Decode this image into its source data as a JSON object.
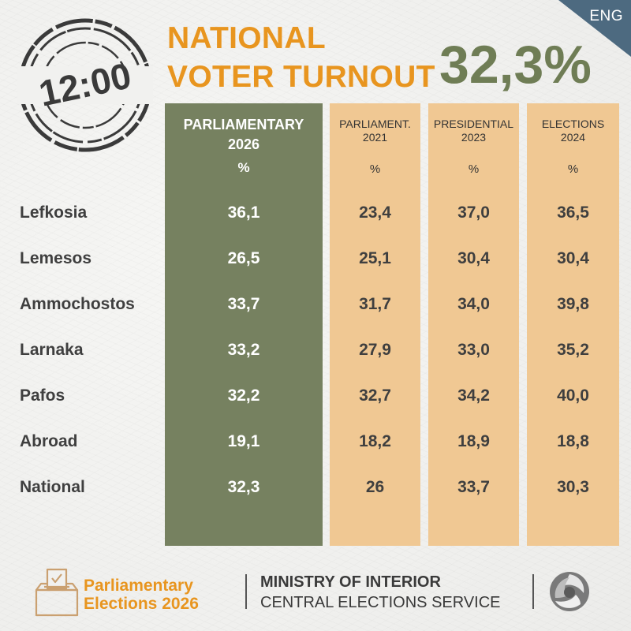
{
  "lang": "ENG",
  "stamp_time": "12:00",
  "title": {
    "line1": "NATIONAL",
    "line2": "VOTER TURNOUT"
  },
  "headline_value": "32,3%",
  "columns": [
    {
      "line1": "PARLIAMENTARY",
      "line2": "2026",
      "unit": "%"
    },
    {
      "line1": "PARLIAMENT.",
      "line2": "2021",
      "unit": "%"
    },
    {
      "line1": "PRESIDENTIAL",
      "line2": "2023",
      "unit": "%"
    },
    {
      "line1": "ELECTIONS",
      "line2": "2024",
      "unit": "%"
    }
  ],
  "rows": [
    {
      "label": "Lefkosia",
      "values": [
        "36,1",
        "23,4",
        "37,0",
        "36,5"
      ]
    },
    {
      "label": "Lemesos",
      "values": [
        "26,5",
        "25,1",
        "30,4",
        "30,4"
      ]
    },
    {
      "label": "Ammochostos",
      "values": [
        "33,7",
        "31,7",
        "34,0",
        "39,8"
      ]
    },
    {
      "label": "Larnaka",
      "values": [
        "33,2",
        "27,9",
        "33,0",
        "35,2"
      ]
    },
    {
      "label": "Pafos",
      "values": [
        "32,2",
        "32,7",
        "34,2",
        "40,0"
      ]
    },
    {
      "label": "Abroad",
      "values": [
        "19,1",
        "18,2",
        "18,9",
        "18,8"
      ]
    },
    {
      "label": "National",
      "values": [
        "32,3",
        "26",
        "33,7",
        "30,3"
      ]
    }
  ],
  "footer": {
    "election_line1": "Parliamentary",
    "election_line2": "Elections 2026",
    "ministry": "MINISTRY OF INTERIOR",
    "service": "CENTRAL ELECTIONS SERVICE"
  },
  "icons": {
    "ballot": "ballot-box-icon",
    "emblem": "ministry-logo-icon"
  },
  "colors": {
    "accent_orange": "#e8951f",
    "olive": "#768160",
    "headline_olive": "#6f7d55",
    "peach": "#f0c893",
    "corner_blue": "#4d6a80",
    "text_dark": "#3f3f3f"
  }
}
